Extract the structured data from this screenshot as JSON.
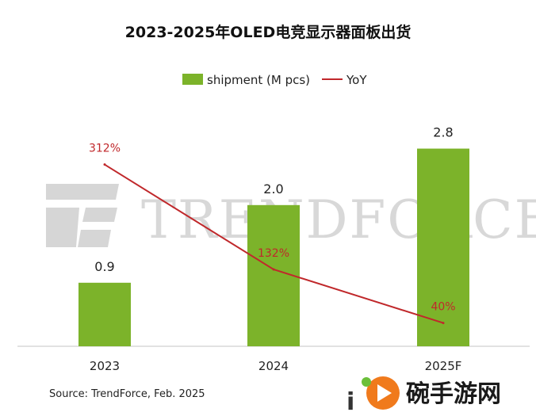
{
  "chart_data": {
    "type": "bar",
    "title": "2023-2025年OLED电竞显示器面板出货",
    "categories": [
      "2023",
      "2024",
      "2025F"
    ],
    "series": [
      {
        "name": "shipment (M pcs)",
        "type": "bar",
        "values": [
          0.9,
          2.0,
          2.8
        ],
        "labels": [
          "0.9",
          "2.0",
          "2.8"
        ]
      },
      {
        "name": "YoY",
        "type": "line",
        "values": [
          312,
          132,
          40
        ],
        "labels": [
          "312%",
          "132%",
          "40%"
        ]
      }
    ],
    "ylim": [
      0,
      3.3
    ],
    "y2lim": [
      0,
      400
    ],
    "legend_position": "top-center",
    "grid": false,
    "colors": {
      "bar": "#7cb32a",
      "line": "#c0282b",
      "axis": "#d0d0d0"
    }
  },
  "source": "Source: TrendForce, Feb. 2025",
  "watermark": {
    "brand": "TRENDFORCE",
    "site_brand": "碗手游网",
    "site_glyph": "i"
  }
}
